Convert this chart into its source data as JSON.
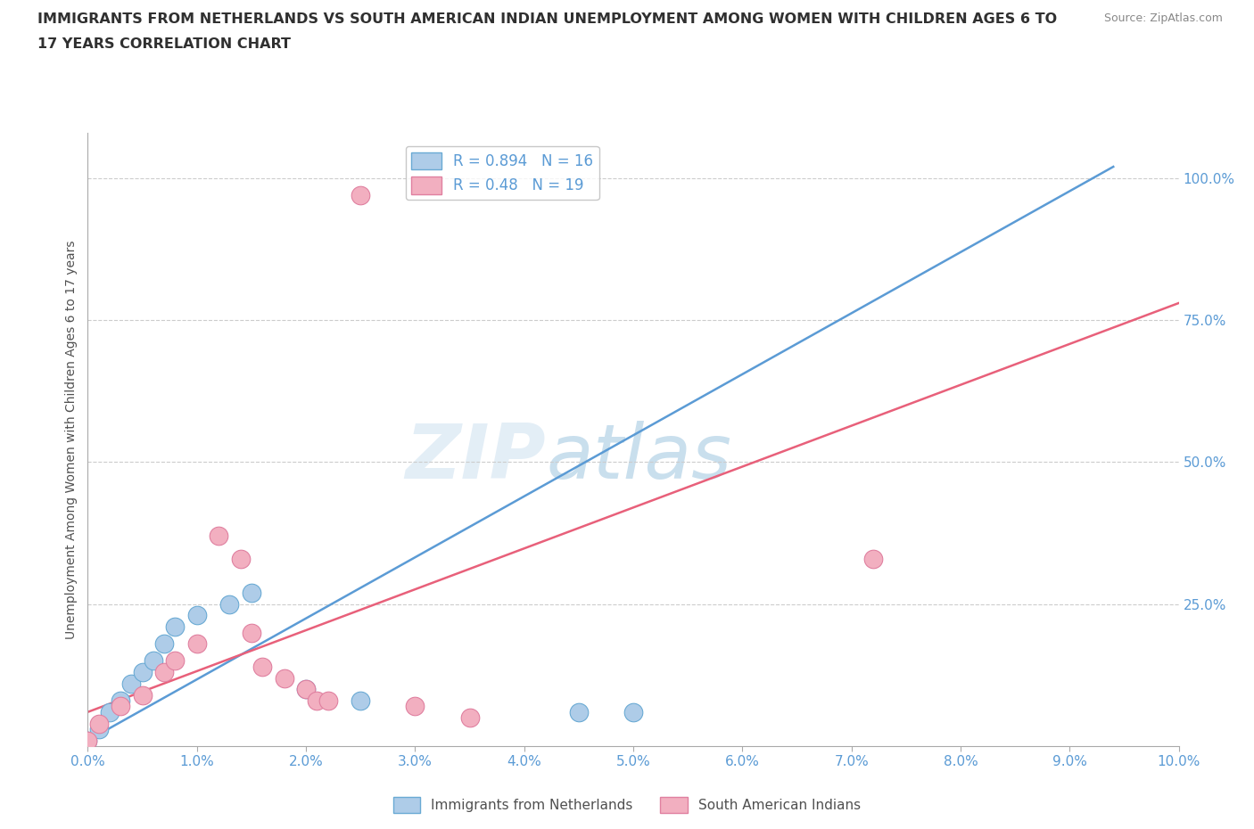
{
  "title": "IMMIGRANTS FROM NETHERLANDS VS SOUTH AMERICAN INDIAN UNEMPLOYMENT AMONG WOMEN WITH CHILDREN AGES 6 TO\n17 YEARS CORRELATION CHART",
  "source_text": "Source: ZipAtlas.com",
  "ylabel": "Unemployment Among Women with Children Ages 6 to 17 years",
  "xlim": [
    0.0,
    0.1
  ],
  "ylim": [
    0.0,
    1.08
  ],
  "xtick_labels": [
    "0.0%",
    "1.0%",
    "2.0%",
    "3.0%",
    "4.0%",
    "5.0%",
    "6.0%",
    "7.0%",
    "8.0%",
    "9.0%",
    "10.0%"
  ],
  "xtick_values": [
    0.0,
    0.01,
    0.02,
    0.03,
    0.04,
    0.05,
    0.06,
    0.07,
    0.08,
    0.09,
    0.1
  ],
  "ytick_labels": [
    "25.0%",
    "50.0%",
    "75.0%",
    "100.0%"
  ],
  "ytick_values": [
    0.25,
    0.5,
    0.75,
    1.0
  ],
  "blue_R": 0.894,
  "blue_N": 16,
  "pink_R": 0.48,
  "pink_N": 19,
  "blue_label": "Immigrants from Netherlands",
  "pink_label": "South American Indians",
  "blue_color": "#aecce8",
  "pink_color": "#f2afc0",
  "blue_edge_color": "#6aaad4",
  "pink_edge_color": "#e080a0",
  "blue_line_color": "#5b9bd5",
  "pink_line_color": "#e8607a",
  "tick_label_color": "#5b9bd5",
  "watermark_color": "#d0e8f8",
  "background_color": "#ffffff",
  "grid_color": "#cccccc",
  "title_color": "#303030",
  "source_color": "#888888",
  "axis_label_color": "#505050",
  "blue_scatter_x": [
    0.0,
    0.001,
    0.002,
    0.003,
    0.004,
    0.005,
    0.006,
    0.007,
    0.008,
    0.01,
    0.013,
    0.015,
    0.02,
    0.025,
    0.045,
    0.05
  ],
  "blue_scatter_y": [
    0.01,
    0.03,
    0.06,
    0.08,
    0.11,
    0.13,
    0.15,
    0.18,
    0.21,
    0.23,
    0.25,
    0.27,
    0.1,
    0.08,
    0.06,
    0.06
  ],
  "pink_scatter_x": [
    0.0,
    0.001,
    0.003,
    0.005,
    0.007,
    0.008,
    0.01,
    0.012,
    0.014,
    0.015,
    0.016,
    0.018,
    0.02,
    0.021,
    0.022,
    0.03,
    0.035,
    0.072,
    0.025
  ],
  "pink_scatter_y": [
    0.01,
    0.04,
    0.07,
    0.09,
    0.13,
    0.15,
    0.18,
    0.37,
    0.33,
    0.2,
    0.14,
    0.12,
    0.1,
    0.08,
    0.08,
    0.07,
    0.05,
    0.33,
    0.97
  ],
  "blue_trend_x": [
    0.0,
    0.094
  ],
  "blue_trend_y": [
    0.01,
    1.02
  ],
  "pink_trend_x": [
    0.0,
    0.1
  ],
  "pink_trend_y": [
    0.06,
    0.78
  ]
}
